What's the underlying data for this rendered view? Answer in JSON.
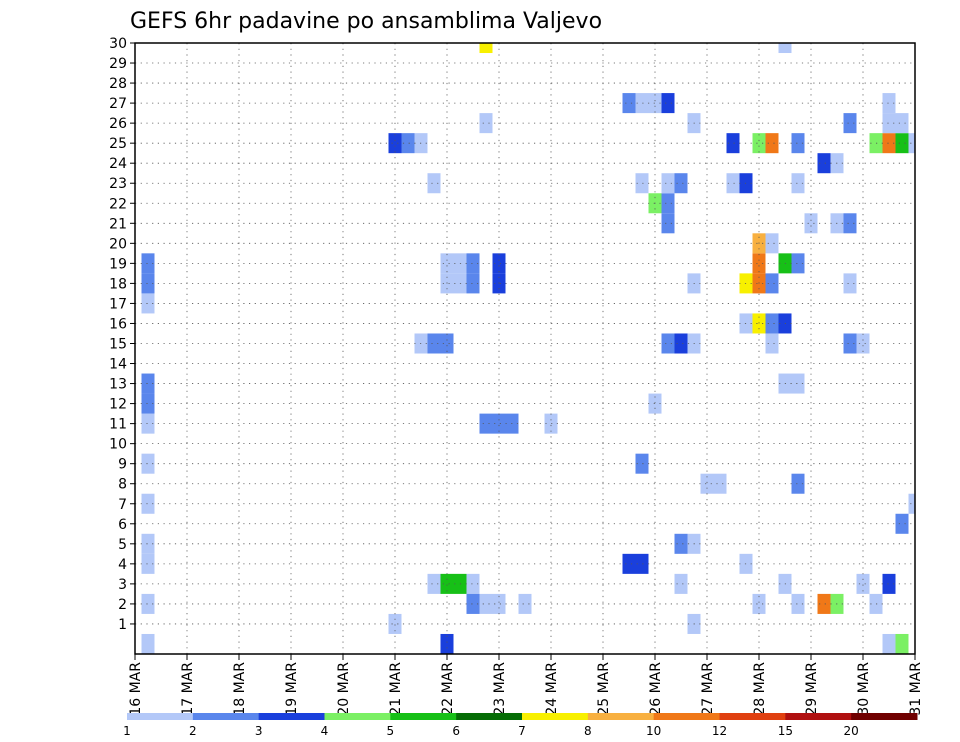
{
  "chart_data": {
    "type": "heatmap",
    "title": "GEFS 6hr padavine po ansamblima Valjevo",
    "x_tick_labels": [
      "16 MAR",
      "17 MAR",
      "18 MAR",
      "19 MAR",
      "20 MAR",
      "21 MAR",
      "22 MAR",
      "23 MAR",
      "24 MAR",
      "25 MAR",
      "26 MAR",
      "27 MAR",
      "28 MAR",
      "29 MAR",
      "30 MAR",
      "31 MAR"
    ],
    "y_tick_labels": [
      "1",
      "2",
      "3",
      "4",
      "5",
      "6",
      "7",
      "8",
      "9",
      "10",
      "11",
      "12",
      "13",
      "14",
      "15",
      "16",
      "17",
      "18",
      "19",
      "20",
      "21",
      "22",
      "23",
      "24",
      "25",
      "26",
      "27",
      "28",
      "29",
      "30"
    ],
    "ylim": [
      0,
      30
    ],
    "grid": true,
    "legend": {
      "placement": "bottom",
      "labels": [
        "1",
        "2",
        "3",
        "4",
        "5",
        "6",
        "7",
        "8",
        "10",
        "12",
        "15",
        "20"
      ],
      "colors": [
        "#b3c8f8",
        "#5a86ec",
        "#1a3fdc",
        "#7bf064",
        "#17c017",
        "#056d05",
        "#f8f000",
        "#f8b040",
        "#f07818",
        "#e04010",
        "#b01010",
        "#700000"
      ]
    },
    "value_colors": {
      "1": "#b3c8f8",
      "2": "#5a86ec",
      "3": "#1a3fdc",
      "4": "#7bf064",
      "5": "#17c017",
      "6": "#056d05",
      "7": "#f8f000",
      "8": "#f8b040",
      "10": "#f07818",
      "12": "#e04010",
      "15": "#b01010",
      "20": "#700000"
    },
    "cells": [
      {
        "date": "16 MAR",
        "hour": 6,
        "member": 0,
        "value": 1
      },
      {
        "date": "16 MAR",
        "hour": 6,
        "member": 2,
        "value": 1
      },
      {
        "date": "16 MAR",
        "hour": 6,
        "member": 4,
        "value": 1
      },
      {
        "date": "16 MAR",
        "hour": 6,
        "member": 5,
        "value": 1
      },
      {
        "date": "16 MAR",
        "hour": 6,
        "member": 7,
        "value": 1
      },
      {
        "date": "16 MAR",
        "hour": 6,
        "member": 9,
        "value": 1
      },
      {
        "date": "16 MAR",
        "hour": 6,
        "member": 11,
        "value": 1
      },
      {
        "date": "16 MAR",
        "hour": 6,
        "member": 12,
        "value": 2
      },
      {
        "date": "16 MAR",
        "hour": 6,
        "member": 13,
        "value": 2
      },
      {
        "date": "16 MAR",
        "hour": 6,
        "member": 17,
        "value": 1
      },
      {
        "date": "16 MAR",
        "hour": 6,
        "member": 18,
        "value": 2
      },
      {
        "date": "16 MAR",
        "hour": 6,
        "member": 19,
        "value": 2
      },
      {
        "date": "21 MAR",
        "hour": 0,
        "member": 1,
        "value": 1
      },
      {
        "date": "21 MAR",
        "hour": 0,
        "member": 25,
        "value": 3
      },
      {
        "date": "21 MAR",
        "hour": 6,
        "member": 25,
        "value": 2
      },
      {
        "date": "21 MAR",
        "hour": 12,
        "member": 25,
        "value": 1
      },
      {
        "date": "21 MAR",
        "hour": 12,
        "member": 15,
        "value": 1
      },
      {
        "date": "21 MAR",
        "hour": 18,
        "member": 3,
        "value": 1
      },
      {
        "date": "21 MAR",
        "hour": 18,
        "member": 23,
        "value": 1
      },
      {
        "date": "21 MAR",
        "hour": 18,
        "member": 15,
        "value": 2
      },
      {
        "date": "22 MAR",
        "hour": 0,
        "member": 3,
        "value": 5
      },
      {
        "date": "22 MAR",
        "hour": 0,
        "member": 0,
        "value": 3
      },
      {
        "date": "22 MAR",
        "hour": 0,
        "member": 15,
        "value": 2
      },
      {
        "date": "22 MAR",
        "hour": 0,
        "member": 19,
        "value": 1
      },
      {
        "date": "22 MAR",
        "hour": 0,
        "member": 18,
        "value": 1
      },
      {
        "date": "22 MAR",
        "hour": 6,
        "member": 3,
        "value": 5
      },
      {
        "date": "22 MAR",
        "hour": 6,
        "member": 19,
        "value": 1
      },
      {
        "date": "22 MAR",
        "hour": 6,
        "member": 18,
        "value": 1
      },
      {
        "date": "22 MAR",
        "hour": 12,
        "member": 3,
        "value": 1
      },
      {
        "date": "22 MAR",
        "hour": 12,
        "member": 2,
        "value": 2
      },
      {
        "date": "22 MAR",
        "hour": 12,
        "member": 19,
        "value": 2
      },
      {
        "date": "22 MAR",
        "hour": 12,
        "member": 18,
        "value": 2
      },
      {
        "date": "22 MAR",
        "hour": 18,
        "member": 2,
        "value": 1
      },
      {
        "date": "22 MAR",
        "hour": 18,
        "member": 30,
        "value": 7
      },
      {
        "date": "22 MAR",
        "hour": 18,
        "member": 11,
        "value": 2
      },
      {
        "date": "22 MAR",
        "hour": 18,
        "member": 26,
        "value": 1
      },
      {
        "date": "23 MAR",
        "hour": 0,
        "member": 2,
        "value": 1
      },
      {
        "date": "23 MAR",
        "hour": 0,
        "member": 11,
        "value": 2
      },
      {
        "date": "23 MAR",
        "hour": 0,
        "member": 19,
        "value": 3
      },
      {
        "date": "23 MAR",
        "hour": 0,
        "member": 18,
        "value": 3
      },
      {
        "date": "23 MAR",
        "hour": 6,
        "member": 11,
        "value": 2
      },
      {
        "date": "23 MAR",
        "hour": 12,
        "member": 2,
        "value": 1
      },
      {
        "date": "24 MAR",
        "hour": 0,
        "member": 11,
        "value": 1
      },
      {
        "date": "25 MAR",
        "hour": 12,
        "member": 4,
        "value": 3
      },
      {
        "date": "25 MAR",
        "hour": 12,
        "member": 27,
        "value": 2
      },
      {
        "date": "25 MAR",
        "hour": 18,
        "member": 4,
        "value": 3
      },
      {
        "date": "25 MAR",
        "hour": 18,
        "member": 9,
        "value": 2
      },
      {
        "date": "25 MAR",
        "hour": 18,
        "member": 23,
        "value": 1
      },
      {
        "date": "25 MAR",
        "hour": 18,
        "member": 27,
        "value": 1
      },
      {
        "date": "26 MAR",
        "hour": 0,
        "member": 12,
        "value": 1
      },
      {
        "date": "26 MAR",
        "hour": 0,
        "member": 22,
        "value": 4
      },
      {
        "date": "26 MAR",
        "hour": 0,
        "member": 27,
        "value": 1
      },
      {
        "date": "26 MAR",
        "hour": 6,
        "member": 22,
        "value": 2
      },
      {
        "date": "26 MAR",
        "hour": 6,
        "member": 21,
        "value": 2
      },
      {
        "date": "26 MAR",
        "hour": 6,
        "member": 23,
        "value": 1
      },
      {
        "date": "26 MAR",
        "hour": 6,
        "member": 27,
        "value": 3
      },
      {
        "date": "26 MAR",
        "hour": 6,
        "member": 15,
        "value": 2
      },
      {
        "date": "26 MAR",
        "hour": 12,
        "member": 3,
        "value": 1
      },
      {
        "date": "26 MAR",
        "hour": 12,
        "member": 5,
        "value": 2
      },
      {
        "date": "26 MAR",
        "hour": 12,
        "member": 15,
        "value": 3
      },
      {
        "date": "26 MAR",
        "hour": 12,
        "member": 23,
        "value": 2
      },
      {
        "date": "26 MAR",
        "hour": 18,
        "member": 1,
        "value": 1
      },
      {
        "date": "26 MAR",
        "hour": 18,
        "member": 5,
        "value": 1
      },
      {
        "date": "26 MAR",
        "hour": 18,
        "member": 15,
        "value": 1
      },
      {
        "date": "26 MAR",
        "hour": 18,
        "member": 18,
        "value": 1
      },
      {
        "date": "26 MAR",
        "hour": 18,
        "member": 26,
        "value": 1
      },
      {
        "date": "27 MAR",
        "hour": 0,
        "member": 8,
        "value": 1
      },
      {
        "date": "27 MAR",
        "hour": 6,
        "member": 8,
        "value": 1
      },
      {
        "date": "27 MAR",
        "hour": 12,
        "member": 23,
        "value": 1
      },
      {
        "date": "27 MAR",
        "hour": 12,
        "member": 25,
        "value": 3
      },
      {
        "date": "27 MAR",
        "hour": 18,
        "member": 4,
        "value": 1
      },
      {
        "date": "27 MAR",
        "hour": 18,
        "member": 16,
        "value": 1
      },
      {
        "date": "27 MAR",
        "hour": 18,
        "member": 18,
        "value": 7
      },
      {
        "date": "27 MAR",
        "hour": 18,
        "member": 23,
        "value": 3
      },
      {
        "date": "28 MAR",
        "hour": 0,
        "member": 2,
        "value": 1
      },
      {
        "date": "28 MAR",
        "hour": 0,
        "member": 16,
        "value": 7
      },
      {
        "date": "28 MAR",
        "hour": 0,
        "member": 18,
        "value": 10
      },
      {
        "date": "28 MAR",
        "hour": 0,
        "member": 19,
        "value": 10
      },
      {
        "date": "28 MAR",
        "hour": 0,
        "member": 20,
        "value": 8
      },
      {
        "date": "28 MAR",
        "hour": 0,
        "member": 25,
        "value": 4
      },
      {
        "date": "28 MAR",
        "hour": 6,
        "member": 15,
        "value": 1
      },
      {
        "date": "28 MAR",
        "hour": 6,
        "member": 16,
        "value": 2
      },
      {
        "date": "28 MAR",
        "hour": 6,
        "member": 18,
        "value": 2
      },
      {
        "date": "28 MAR",
        "hour": 6,
        "member": 20,
        "value": 1
      },
      {
        "date": "28 MAR",
        "hour": 6,
        "member": 25,
        "value": 10
      },
      {
        "date": "28 MAR",
        "hour": 12,
        "member": 3,
        "value": 1
      },
      {
        "date": "28 MAR",
        "hour": 12,
        "member": 13,
        "value": 1
      },
      {
        "date": "28 MAR",
        "hour": 12,
        "member": 16,
        "value": 3
      },
      {
        "date": "28 MAR",
        "hour": 12,
        "member": 19,
        "value": 5
      },
      {
        "date": "28 MAR",
        "hour": 12,
        "member": 30,
        "value": 1
      },
      {
        "date": "28 MAR",
        "hour": 18,
        "member": 2,
        "value": 1
      },
      {
        "date": "28 MAR",
        "hour": 18,
        "member": 8,
        "value": 2
      },
      {
        "date": "28 MAR",
        "hour": 18,
        "member": 13,
        "value": 1
      },
      {
        "date": "28 MAR",
        "hour": 18,
        "member": 19,
        "value": 2
      },
      {
        "date": "28 MAR",
        "hour": 18,
        "member": 23,
        "value": 1
      },
      {
        "date": "28 MAR",
        "hour": 18,
        "member": 25,
        "value": 2
      },
      {
        "date": "29 MAR",
        "hour": 0,
        "member": 21,
        "value": 1
      },
      {
        "date": "29 MAR",
        "hour": 6,
        "member": 2,
        "value": 10
      },
      {
        "date": "29 MAR",
        "hour": 6,
        "member": 24,
        "value": 3
      },
      {
        "date": "29 MAR",
        "hour": 12,
        "member": 2,
        "value": 4
      },
      {
        "date": "29 MAR",
        "hour": 12,
        "member": 21,
        "value": 1
      },
      {
        "date": "29 MAR",
        "hour": 12,
        "member": 24,
        "value": 1
      },
      {
        "date": "29 MAR",
        "hour": 18,
        "member": 15,
        "value": 2
      },
      {
        "date": "29 MAR",
        "hour": 18,
        "member": 18,
        "value": 1
      },
      {
        "date": "29 MAR",
        "hour": 18,
        "member": 21,
        "value": 2
      },
      {
        "date": "29 MAR",
        "hour": 18,
        "member": 26,
        "value": 2
      },
      {
        "date": "30 MAR",
        "hour": 0,
        "member": 3,
        "value": 1
      },
      {
        "date": "30 MAR",
        "hour": 0,
        "member": 15,
        "value": 1
      },
      {
        "date": "30 MAR",
        "hour": 6,
        "member": 2,
        "value": 1
      },
      {
        "date": "30 MAR",
        "hour": 6,
        "member": 25,
        "value": 4
      },
      {
        "date": "30 MAR",
        "hour": 12,
        "member": 0,
        "value": 1
      },
      {
        "date": "30 MAR",
        "hour": 12,
        "member": 3,
        "value": 3
      },
      {
        "date": "30 MAR",
        "hour": 12,
        "member": 25,
        "value": 10
      },
      {
        "date": "30 MAR",
        "hour": 12,
        "member": 26,
        "value": 1
      },
      {
        "date": "30 MAR",
        "hour": 12,
        "member": 27,
        "value": 1
      },
      {
        "date": "30 MAR",
        "hour": 18,
        "member": 0,
        "value": 4
      },
      {
        "date": "30 MAR",
        "hour": 18,
        "member": 6,
        "value": 2
      },
      {
        "date": "30 MAR",
        "hour": 18,
        "member": 25,
        "value": 5
      },
      {
        "date": "30 MAR",
        "hour": 18,
        "member": 26,
        "value": 1
      },
      {
        "date": "31 MAR",
        "hour": 0,
        "member": 7,
        "value": 1
      },
      {
        "date": "31 MAR",
        "hour": 0,
        "member": 25,
        "value": 1
      }
    ]
  }
}
